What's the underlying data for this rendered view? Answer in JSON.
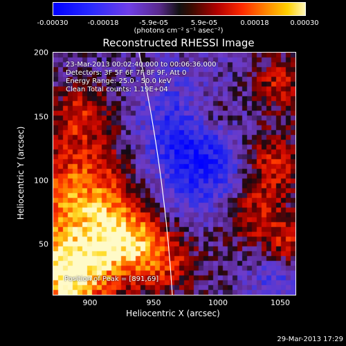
{
  "colorbar": {
    "ticks": [
      "-0.00030",
      "-0.00018",
      "-5.9e-05",
      "5.9e-05",
      "0.00018",
      "0.00030"
    ],
    "units": "(photons cm⁻² s⁻¹ asec⁻²)"
  },
  "title": "Reconstructed RHESSI Image",
  "info": {
    "line1": "23-Mar-2013 00:02:40.000 to 00:06:36.000",
    "line2": "Detectors: 3F 5F 6F 7F 8F 9F, Att 0",
    "line3": "Energy Range: 25.0 - 50.0 keV",
    "line4": "Clean     Total counts: 1.19E+04",
    "peak": "Position of Peak = [891,69]"
  },
  "chart_data": {
    "type": "heatmap",
    "title": "Reconstructed RHESSI Image",
    "xlabel": "Heliocentric X (arcsec)",
    "ylabel": "Heliocentric Y (arcsec)",
    "xlim": [
      865,
      1060
    ],
    "ylim": [
      10,
      200
    ],
    "xticks": [
      "900",
      "950",
      "1000",
      "1050"
    ],
    "yticks": [
      "50",
      "100",
      "150",
      "200"
    ],
    "clim": [
      -0.0003,
      0.0003
    ],
    "peak": [
      891,
      69
    ]
  },
  "timestamp": "29-Mar-2013 17:29",
  "colors": {
    "background": "#000000",
    "text": "#ffffff"
  }
}
